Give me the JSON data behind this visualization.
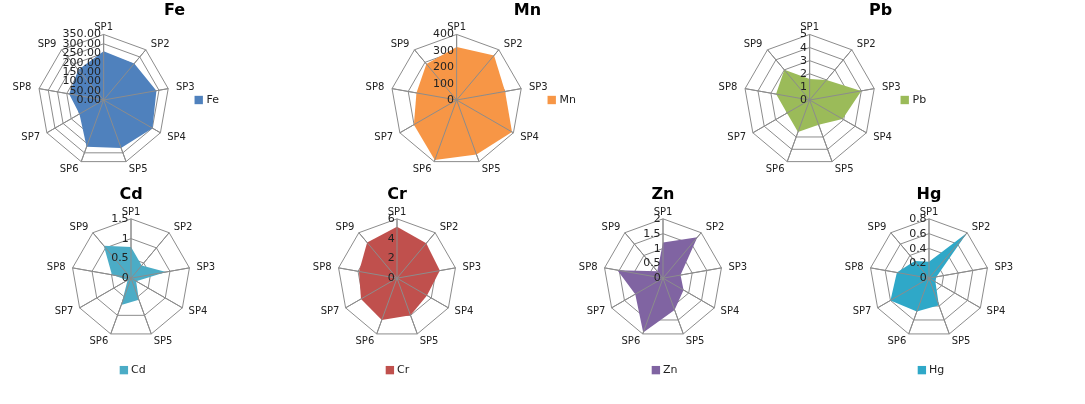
{
  "chart_data": [
    {
      "type": "radar",
      "title": "Fe",
      "categories": [
        "SP1",
        "SP2",
        "SP3",
        "SP4",
        "SP5",
        "SP6",
        "SP7",
        "SP8",
        "SP9"
      ],
      "ylim": [
        0,
        350
      ],
      "yticks": [
        {
          "value": 0,
          "label": "0.00"
        },
        {
          "value": 50,
          "label": "50.00"
        },
        {
          "value": 100,
          "label": "100.00"
        },
        {
          "value": 150,
          "label": "150.00"
        },
        {
          "value": 200,
          "label": "200.00"
        },
        {
          "value": 250,
          "label": "250.00"
        },
        {
          "value": 300,
          "label": "300.00"
        },
        {
          "value": 350,
          "label": "350.00"
        }
      ],
      "grid": true,
      "legend": "right",
      "series": [
        {
          "name": "Fe",
          "color": "#4f81bd",
          "values": [
            260,
            254,
            286,
            301,
            272,
            266,
            149,
            187,
            210
          ]
        }
      ]
    },
    {
      "type": "radar",
      "title": "Mn",
      "categories": [
        "SP1",
        "SP2",
        "SP3",
        "SP4",
        "SP5",
        "SP6",
        "SP7",
        "SP8",
        "SP9"
      ],
      "ylim": [
        0,
        400
      ],
      "yticks": [
        0,
        100,
        200,
        300,
        400
      ],
      "grid": true,
      "legend": "right",
      "series": [
        {
          "name": "Mn",
          "color": "#f79646",
          "values": [
            324,
            355,
            300,
            390,
            354,
            390,
            301,
            249,
            287
          ]
        }
      ]
    },
    {
      "type": "radar",
      "title": "Pb",
      "categories": [
        "SP1",
        "SP2",
        "SP3",
        "SP4",
        "SP5",
        "SP6",
        "SP7",
        "SP8",
        "SP9"
      ],
      "ylim": [
        0,
        5
      ],
      "yticks": [
        0,
        1,
        2,
        3,
        4,
        5
      ],
      "grid": true,
      "legend": "right",
      "series": [
        {
          "name": "Pb",
          "color": "#9bbb59",
          "values": [
            1.6,
            2.0,
            4.0,
            2.9,
            2.0,
            2.6,
            2.0,
            2.6,
            3.0
          ]
        }
      ]
    },
    {
      "type": "radar",
      "title": "Cd",
      "categories": [
        "SP1",
        "SP2",
        "SP3",
        "SP4",
        "SP5",
        "SP6",
        "SP7",
        "SP8",
        "SP9"
      ],
      "ylim": [
        0,
        1.5
      ],
      "yticks": [
        0,
        0.5,
        1,
        1.5
      ],
      "grid": true,
      "legend": "bottom",
      "series": [
        {
          "name": "Cd",
          "color": "#4bacc6",
          "values": [
            0.79,
            0.42,
            0.9,
            0.15,
            0.58,
            0.72,
            0.1,
            0.49,
            1.07
          ]
        }
      ]
    },
    {
      "type": "radar",
      "title": "Cr",
      "categories": [
        "SP1",
        "SP2",
        "SP3",
        "SP4",
        "SP5",
        "SP6",
        "SP7",
        "SP8",
        "SP9"
      ],
      "ylim": [
        0,
        6
      ],
      "yticks": [
        0,
        2,
        4,
        6
      ],
      "grid": true,
      "legend": "bottom",
      "series": [
        {
          "name": "Cr",
          "color": "#c0504d",
          "values": [
            5.2,
            4.6,
            4.4,
            3.5,
            4.0,
            4.5,
            4.2,
            3.9,
            4.7
          ]
        }
      ]
    },
    {
      "type": "radar",
      "title": "Zn",
      "categories": [
        "SP1",
        "SP2",
        "SP3",
        "SP4",
        "SP5",
        "SP6",
        "SP7",
        "SP8",
        "SP9"
      ],
      "ylim": [
        0,
        2
      ],
      "yticks": [
        0,
        0.5,
        1,
        1.5,
        2
      ],
      "grid": true,
      "legend": "bottom",
      "series": [
        {
          "name": "Zn",
          "color": "#8064a2",
          "values": [
            1.2,
            1.8,
            0.6,
            0.8,
            1.14,
            1.95,
            1.08,
            1.56,
            0.3
          ]
        }
      ]
    },
    {
      "type": "radar",
      "title": "Hg",
      "categories": [
        "SP1",
        "SP2",
        "SP3",
        "SP4",
        "SP5",
        "SP6",
        "SP7",
        "SP8",
        "SP9"
      ],
      "ylim": [
        0,
        0.8
      ],
      "yticks": [
        0,
        0.2,
        0.4,
        0.6,
        0.8
      ],
      "grid": true,
      "legend": "bottom",
      "series": [
        {
          "name": "Hg",
          "color": "#2fa8c8",
          "values": [
            0.22,
            0.8,
            0.1,
            0.1,
            0.39,
            0.48,
            0.6,
            0.44,
            0.3
          ]
        }
      ]
    }
  ]
}
